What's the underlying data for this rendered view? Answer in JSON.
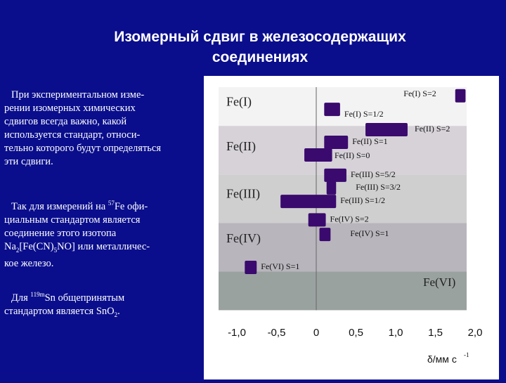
{
  "title": [
    "Изомерный сдвиг в железосодержащих",
    "соединениях"
  ],
  "paragraph1": [
    "При экспериментальном изме-",
    "рении изомерных химических",
    "сдвигов всегда важно, какой",
    "используется стандарт, относи-",
    "тельно которого будут определяться",
    "эти сдвиги."
  ],
  "paragraph2": {
    "line1_pre": "Так для измерений на ",
    "isotope_sup": "57",
    "line1_post": "Fe офи-",
    "line2": "циальным стандартом является",
    "line3": "соединение этого изотопа",
    "formula_a": "Na",
    "formula_sub1": "2",
    "formula_b": "[Fe(CN)",
    "formula_sub2": "5",
    "formula_c": "NO] или металличес-",
    "line5": "кое железо."
  },
  "paragraph3": {
    "pre": "Для ",
    "isotope_sup": "119m",
    "post": "Sn общепринятым",
    "line2_pre": "стандартом является SnO",
    "line2_sub": "2",
    "line2_post": "."
  },
  "chart_data": {
    "type": "bar",
    "xlabel": "δ/мм с",
    "xlabel_sup": "-1",
    "xlim": [
      -1.0,
      2.0
    ],
    "x_ticks": [
      "-1,0",
      "-0,5",
      "0",
      "0,5",
      "1,0",
      "1,5",
      "2,0"
    ],
    "x_tick_values": [
      -1.0,
      -0.5,
      0,
      0.5,
      1.0,
      1.5,
      2.0
    ],
    "zero_line": 0,
    "bar_color": "#3a0a6e",
    "bands": [
      {
        "label": "Fe(I)",
        "color": "#f3f3f3",
        "y_from": 0,
        "y_to": 4
      },
      {
        "label": "Fe(II)",
        "color": "#d6d2d8",
        "y_from": 4,
        "y_to": 9
      },
      {
        "label": "Fe(III)",
        "color": "#cfcfcf",
        "y_from": 9,
        "y_to": 14
      },
      {
        "label": "Fe(IV)",
        "color": "#b9b5bc",
        "y_from": 14,
        "y_to": 19
      },
      {
        "label": "Fe(VI)",
        "color": "#9aa2a0",
        "y_from": 19,
        "y_to": 23
      }
    ],
    "ranges": [
      {
        "label": "Fe(I) S=2",
        "from": 1.75,
        "to": 1.88
      },
      {
        "label": "Fe(I) S=1/2",
        "from": 0.1,
        "to": 0.3
      },
      {
        "label": "Fe(II) S=2",
        "from": 0.62,
        "to": 1.15
      },
      {
        "label": "Fe(II) S=1",
        "from": 0.1,
        "to": 0.4
      },
      {
        "label": "Fe(II) S=0",
        "from": -0.15,
        "to": 0.2
      },
      {
        "label": "Fe(III) S=5/2",
        "from": 0.1,
        "to": 0.38
      },
      {
        "label": "Fe(III) S=3/2",
        "from": 0.13,
        "to": 0.25
      },
      {
        "label": "Fe(III) S=1/2",
        "from": -0.45,
        "to": 0.25
      },
      {
        "label": "Fe(IV) S=2",
        "from": -0.1,
        "to": 0.12
      },
      {
        "label": "Fe(IV) S=1",
        "from": 0.04,
        "to": 0.18
      },
      {
        "label": "Fe(VI) S=1",
        "from": -0.9,
        "to": -0.75
      }
    ]
  }
}
